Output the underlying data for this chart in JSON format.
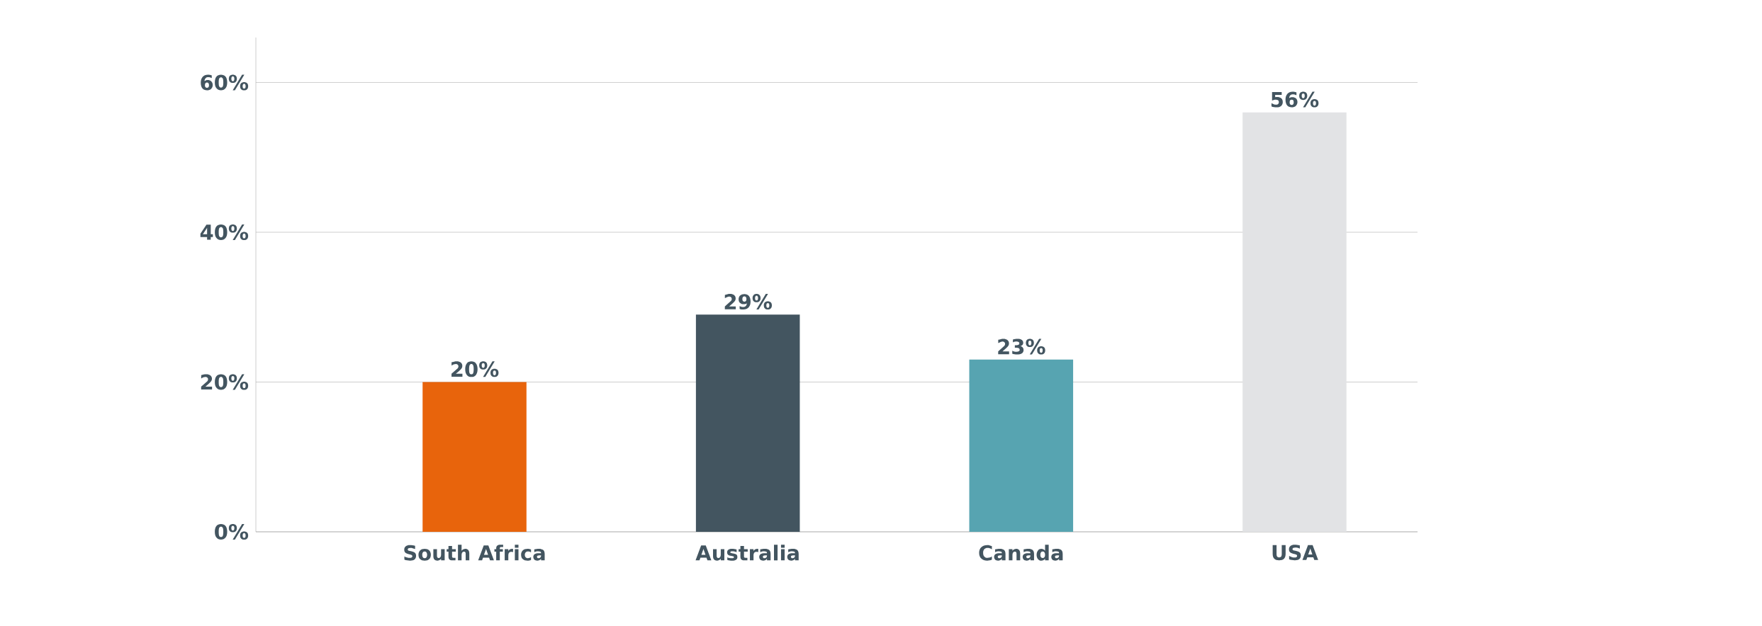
{
  "chart_data": {
    "type": "bar",
    "categories": [
      "South Africa",
      "Australia",
      "Canada",
      "USA"
    ],
    "values": [
      20,
      29,
      23,
      56
    ],
    "value_labels": [
      "20%",
      "29%",
      "23%",
      "56%"
    ],
    "colors": [
      "#e8640c",
      "#435560",
      "#57a4b1",
      "#e2e3e5"
    ],
    "ylim": [
      0,
      66
    ],
    "yticks": [
      {
        "value": 0,
        "label": "0%"
      },
      {
        "value": 20,
        "label": "20%"
      },
      {
        "value": 40,
        "label": "40%"
      },
      {
        "value": 60,
        "label": "60%"
      }
    ],
    "grid": "y"
  }
}
